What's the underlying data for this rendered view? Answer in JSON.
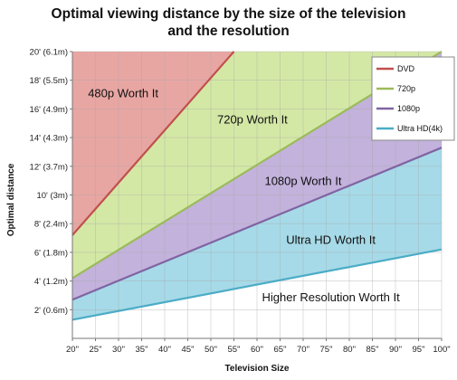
{
  "chart_data": {
    "type": "area",
    "title_line1": "Optimal viewing distance by the size of the television",
    "title_line2": "and the resolution",
    "xlabel": "Television Size",
    "ylabel": "Optimal distance",
    "x": [
      20,
      25,
      30,
      35,
      40,
      45,
      50,
      55,
      60,
      65,
      70,
      75,
      80,
      85,
      90,
      95,
      100
    ],
    "x_tick_labels": [
      "20\"",
      "25\"",
      "30\"",
      "35\"",
      "40\"",
      "45\"",
      "50\"",
      "55\"",
      "60\"",
      "65\"",
      "70\"",
      "75\"",
      "80\"",
      "85\"",
      "90\"",
      "95\"",
      "100\""
    ],
    "y_ticks": [
      2,
      4,
      6,
      8,
      10,
      12,
      14,
      16,
      18,
      20
    ],
    "y_tick_labels": [
      "2' (0.6m)",
      "4' (1.2m)",
      "6' (1.8m)",
      "8' (2.4m)",
      "10' (3m)",
      "12' (3.7m)",
      "14' (4.3m)",
      "16' (4.9m)",
      "18' (5.5m)",
      "20' (6.1m)"
    ],
    "xlim": [
      20,
      100
    ],
    "ylim": [
      0,
      20
    ],
    "grid": true,
    "legend_position": "top-right",
    "series": [
      {
        "name": "DVD",
        "color": "#c0504d",
        "x": [
          20,
          55
        ],
        "y": [
          7.2,
          20
        ]
      },
      {
        "name": "720p",
        "color": "#9bbb59",
        "x": [
          20,
          100
        ],
        "y": [
          4.2,
          20
        ]
      },
      {
        "name": "1080p",
        "color": "#8064a2",
        "x": [
          20,
          100
        ],
        "y": [
          2.7,
          13.3
        ]
      },
      {
        "name": "Ultra HD(4k)",
        "color": "#4bacc6",
        "x": [
          20,
          100
        ],
        "y": [
          1.3,
          6.2
        ]
      }
    ],
    "region_fills": [
      "#e8a6a3",
      "#d4e8a6",
      "#c3b2dc",
      "#a6dae8"
    ],
    "region_labels": [
      "480p Worth It",
      "720p Worth It",
      "1080p Worth It",
      "Ultra HD Worth It",
      "Higher Resolution Worth It"
    ]
  }
}
